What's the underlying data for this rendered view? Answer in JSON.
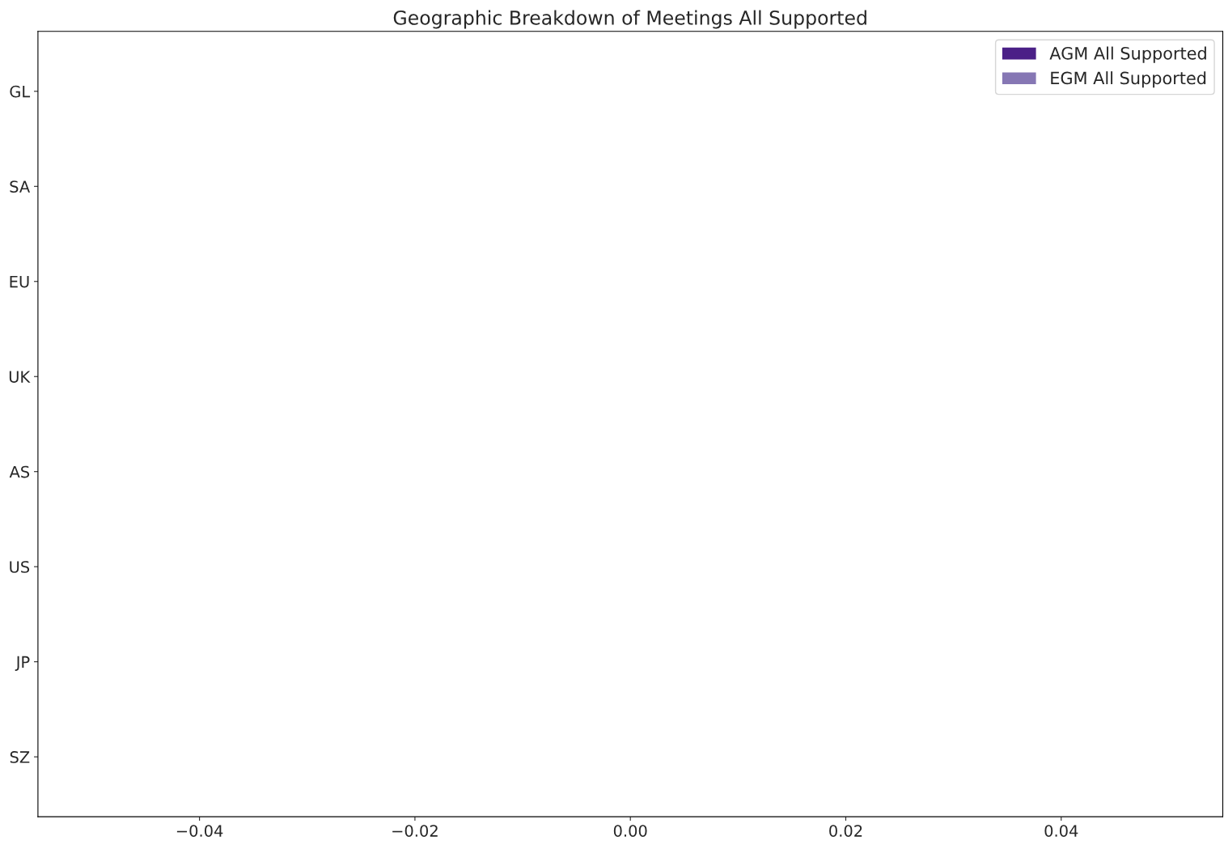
{
  "chart_data": {
    "type": "bar",
    "orientation": "horizontal",
    "title": "Geographic Breakdown of Meetings All Supported",
    "categories": [
      "GL",
      "SA",
      "EU",
      "UK",
      "AS",
      "US",
      "JP",
      "SZ"
    ],
    "series": [
      {
        "name": "AGM All Supported",
        "color": "#4b2087",
        "values": [
          0,
          0,
          0,
          0,
          0,
          0,
          0,
          0
        ]
      },
      {
        "name": "EGM All Supported",
        "color": "#8677b4",
        "values": [
          0,
          0,
          0,
          0,
          0,
          0,
          0,
          0
        ]
      }
    ],
    "xlim": [
      -0.055,
      0.055
    ],
    "xticks": [
      {
        "value": -0.04,
        "label": "−0.04"
      },
      {
        "value": -0.02,
        "label": "−0.02"
      },
      {
        "value": 0,
        "label": "0.00"
      },
      {
        "value": 0.02,
        "label": "0.02"
      },
      {
        "value": 0.04,
        "label": "0.04"
      }
    ],
    "legend": "top right",
    "grid": false
  }
}
